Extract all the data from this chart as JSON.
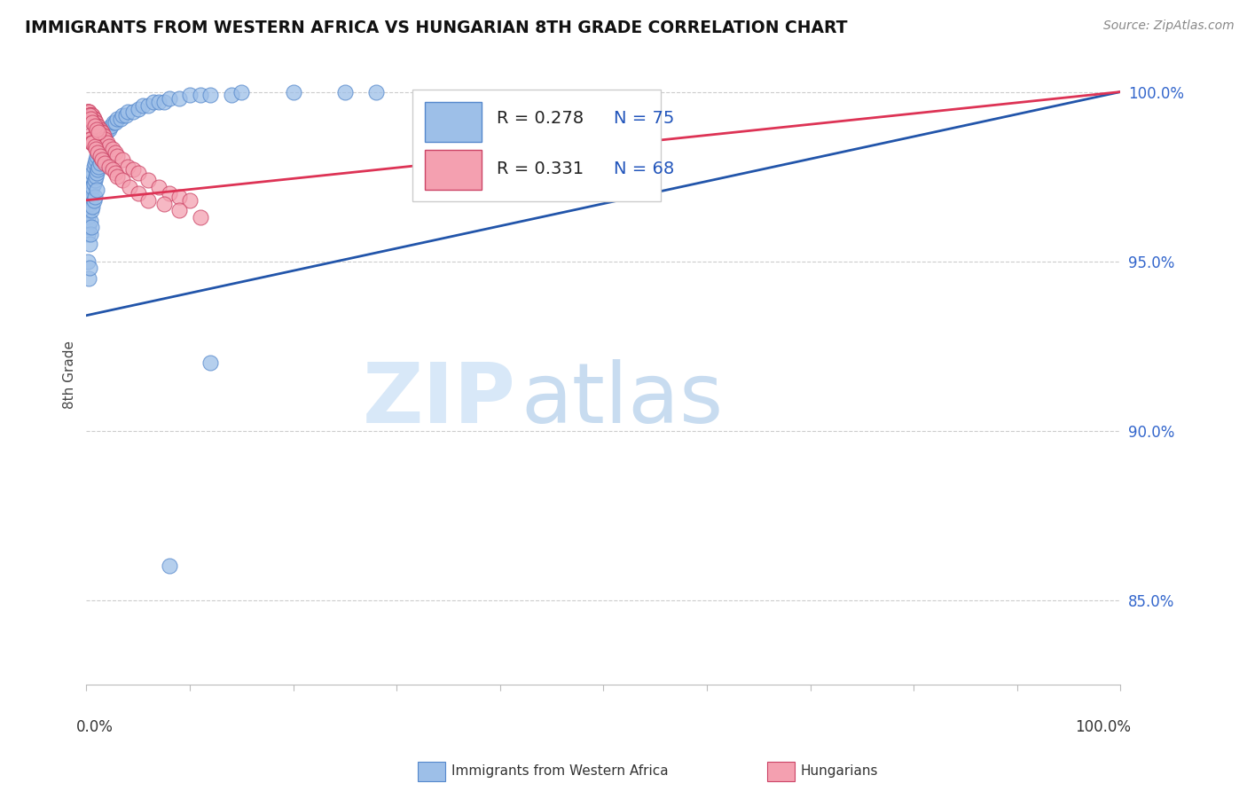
{
  "title": "IMMIGRANTS FROM WESTERN AFRICA VS HUNGARIAN 8TH GRADE CORRELATION CHART",
  "source": "Source: ZipAtlas.com",
  "ylabel": "8th Grade",
  "y_tick_labels": [
    "100.0%",
    "95.0%",
    "90.0%",
    "85.0%"
  ],
  "y_tick_positions": [
    1.0,
    0.95,
    0.9,
    0.85
  ],
  "legend_blue_label": "Immigrants from Western Africa",
  "legend_pink_label": "Hungarians",
  "r_blue": 0.278,
  "n_blue": 75,
  "r_pink": 0.331,
  "n_pink": 68,
  "blue_color": "#9DBFE8",
  "pink_color": "#F4A0B0",
  "blue_line_color": "#2255AA",
  "pink_line_color": "#DD3355",
  "blue_edge_color": "#5588CC",
  "pink_edge_color": "#CC4466",
  "watermark_zip": "ZIP",
  "watermark_atlas": "atlas",
  "blue_trend_start_y": 0.934,
  "blue_trend_end_y": 1.0,
  "pink_trend_start_y": 0.968,
  "pink_trend_end_y": 1.0,
  "xlim": [
    0.0,
    1.0
  ],
  "ylim": [
    0.825,
    1.008
  ],
  "blue_scatter_x": [
    0.001,
    0.001,
    0.001,
    0.002,
    0.002,
    0.002,
    0.003,
    0.003,
    0.003,
    0.003,
    0.004,
    0.004,
    0.004,
    0.004,
    0.005,
    0.005,
    0.005,
    0.005,
    0.006,
    0.006,
    0.006,
    0.007,
    0.007,
    0.007,
    0.008,
    0.008,
    0.008,
    0.009,
    0.009,
    0.01,
    0.01,
    0.01,
    0.011,
    0.011,
    0.012,
    0.012,
    0.013,
    0.013,
    0.014,
    0.015,
    0.015,
    0.016,
    0.017,
    0.018,
    0.018,
    0.019,
    0.02,
    0.022,
    0.024,
    0.026,
    0.028,
    0.03,
    0.033,
    0.035,
    0.038,
    0.04,
    0.045,
    0.05,
    0.055,
    0.06,
    0.065,
    0.07,
    0.075,
    0.08,
    0.09,
    0.1,
    0.11,
    0.12,
    0.14,
    0.15,
    0.2,
    0.25,
    0.28,
    0.12,
    0.08
  ],
  "blue_scatter_y": [
    0.958,
    0.963,
    0.95,
    0.965,
    0.96,
    0.945,
    0.97,
    0.967,
    0.955,
    0.948,
    0.972,
    0.968,
    0.962,
    0.958,
    0.975,
    0.97,
    0.965,
    0.96,
    0.976,
    0.972,
    0.966,
    0.978,
    0.973,
    0.968,
    0.979,
    0.974,
    0.969,
    0.98,
    0.975,
    0.981,
    0.976,
    0.971,
    0.982,
    0.977,
    0.983,
    0.978,
    0.984,
    0.979,
    0.984,
    0.985,
    0.98,
    0.986,
    0.987,
    0.987,
    0.982,
    0.988,
    0.989,
    0.989,
    0.99,
    0.991,
    0.991,
    0.992,
    0.992,
    0.993,
    0.993,
    0.994,
    0.994,
    0.995,
    0.996,
    0.996,
    0.997,
    0.997,
    0.997,
    0.998,
    0.998,
    0.999,
    0.999,
    0.999,
    0.999,
    1.0,
    1.0,
    1.0,
    1.0,
    0.92,
    0.86
  ],
  "pink_scatter_x": [
    0.001,
    0.001,
    0.002,
    0.002,
    0.003,
    0.003,
    0.004,
    0.004,
    0.005,
    0.005,
    0.006,
    0.006,
    0.007,
    0.007,
    0.008,
    0.009,
    0.01,
    0.01,
    0.011,
    0.012,
    0.013,
    0.014,
    0.015,
    0.016,
    0.017,
    0.018,
    0.02,
    0.022,
    0.025,
    0.028,
    0.03,
    0.035,
    0.04,
    0.045,
    0.05,
    0.06,
    0.07,
    0.08,
    0.09,
    0.1,
    0.002,
    0.003,
    0.004,
    0.005,
    0.006,
    0.008,
    0.009,
    0.011,
    0.013,
    0.015,
    0.018,
    0.022,
    0.025,
    0.028,
    0.03,
    0.035,
    0.042,
    0.05,
    0.06,
    0.075,
    0.09,
    0.11,
    0.003,
    0.004,
    0.006,
    0.008,
    0.01,
    0.012
  ],
  "pink_scatter_y": [
    0.994,
    0.994,
    0.994,
    0.994,
    0.993,
    0.993,
    0.993,
    0.993,
    0.993,
    0.993,
    0.993,
    0.992,
    0.992,
    0.992,
    0.991,
    0.991,
    0.99,
    0.99,
    0.99,
    0.989,
    0.989,
    0.988,
    0.988,
    0.987,
    0.987,
    0.986,
    0.985,
    0.984,
    0.983,
    0.982,
    0.981,
    0.98,
    0.978,
    0.977,
    0.976,
    0.974,
    0.972,
    0.97,
    0.969,
    0.968,
    0.987,
    0.986,
    0.986,
    0.985,
    0.985,
    0.984,
    0.983,
    0.982,
    0.981,
    0.98,
    0.979,
    0.978,
    0.977,
    0.976,
    0.975,
    0.974,
    0.972,
    0.97,
    0.968,
    0.967,
    0.965,
    0.963,
    0.993,
    0.992,
    0.991,
    0.99,
    0.989,
    0.988
  ]
}
